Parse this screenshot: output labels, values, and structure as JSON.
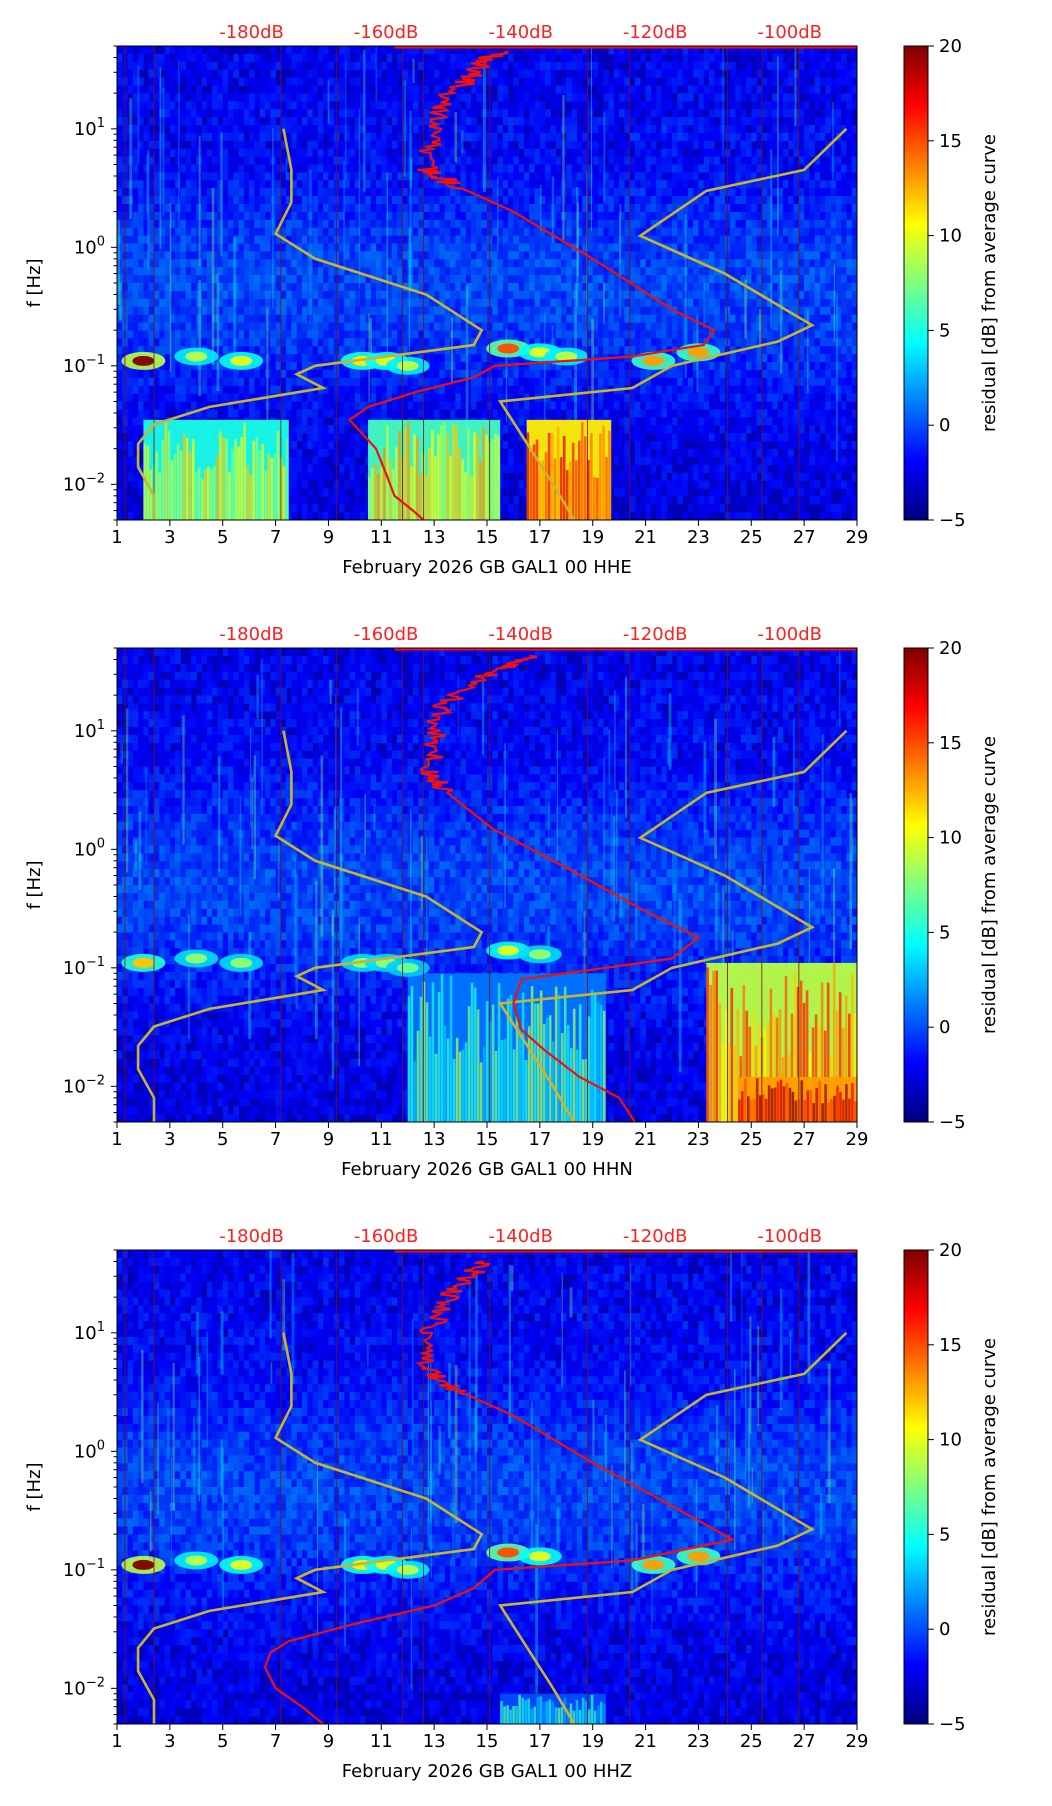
{
  "colors": {
    "db_scale_text": "#ff2020",
    "mean_curve": "#ee1111",
    "noise_model": "#c8b432",
    "grid_line": "#7a1010",
    "jet": [
      "#00007f",
      "#0000ff",
      "#007fff",
      "#00ffff",
      "#7fff7f",
      "#ffff00",
      "#ff7f00",
      "#ff0000",
      "#7f0000"
    ]
  },
  "chart_data": [
    {
      "type": "heatmap",
      "title": "",
      "xlabel": "February 2026 GB GAL1 00 HHE",
      "ylabel": "f [Hz]",
      "x_ticks": [
        "1",
        "3",
        "5",
        "7",
        "9",
        "11",
        "13",
        "15",
        "17",
        "19",
        "21",
        "23",
        "25",
        "27",
        "29"
      ],
      "xlim": [
        1,
        29
      ],
      "ylim": [
        0.005,
        50
      ],
      "yscale": "log",
      "y_ticks": [
        {
          "value": 0.01,
          "base": "10",
          "exp": "−2"
        },
        {
          "value": 0.1,
          "base": "10",
          "exp": "−1"
        },
        {
          "value": 1,
          "base": "10",
          "exp": "0"
        },
        {
          "value": 10,
          "base": "10",
          "exp": "1"
        }
      ],
      "top_db_labels": [
        "-180dB",
        "-160dB",
        "-140dB",
        "-120dB",
        "-100dB"
      ],
      "top_db_values": [
        -180,
        -160,
        -140,
        -120,
        -100
      ],
      "colorbar": {
        "label": "residual [dB] from average curve",
        "min": -5,
        "max": 20,
        "ticks": [
          "20",
          "15",
          "10",
          "5",
          "0",
          "−5"
        ]
      },
      "mean_curve": [
        {
          "x": 12.6,
          "f": 0.005
        },
        {
          "x": 12.2,
          "f": 0.006
        },
        {
          "x": 11.5,
          "f": 0.008
        },
        {
          "x": 11.2,
          "f": 0.012
        },
        {
          "x": 10.8,
          "f": 0.02
        },
        {
          "x": 10.2,
          "f": 0.028
        },
        {
          "x": 9.8,
          "f": 0.035
        },
        {
          "x": 10.5,
          "f": 0.045
        },
        {
          "x": 12.3,
          "f": 0.06
        },
        {
          "x": 14.5,
          "f": 0.08
        },
        {
          "x": 15.3,
          "f": 0.1
        },
        {
          "x": 20.5,
          "f": 0.12
        },
        {
          "x": 23.2,
          "f": 0.15
        },
        {
          "x": 23.6,
          "f": 0.2
        },
        {
          "x": 22.0,
          "f": 0.3
        },
        {
          "x": 19.0,
          "f": 0.8
        },
        {
          "x": 16.0,
          "f": 2.0
        },
        {
          "x": 13.6,
          "f": 3.5
        },
        {
          "x": 12.8,
          "f": 4.5
        },
        {
          "x": 12.9,
          "f": 8
        },
        {
          "x": 13.1,
          "f": 15
        },
        {
          "x": 14.2,
          "f": 25
        },
        {
          "x": 14.8,
          "f": 35
        },
        {
          "x": 15.4,
          "f": 45
        }
      ],
      "hot_bands": [
        {
          "x0": 2.0,
          "x1": 7.5,
          "f0": 0.005,
          "f1": 0.035,
          "level": 9
        },
        {
          "x0": 10.5,
          "x1": 15.5,
          "f0": 0.005,
          "f1": 0.035,
          "level": 10
        },
        {
          "x0": 16.5,
          "x1": 19.7,
          "f0": 0.005,
          "f1": 0.035,
          "level": 15
        }
      ],
      "microseism": [
        {
          "x": 2.0,
          "f": 0.11,
          "level": 20
        },
        {
          "x": 4.0,
          "f": 0.12,
          "level": 9
        },
        {
          "x": 5.7,
          "f": 0.11,
          "level": 10
        },
        {
          "x": 10.3,
          "f": 0.11,
          "level": 11
        },
        {
          "x": 11.2,
          "f": 0.11,
          "level": 10
        },
        {
          "x": 12.0,
          "f": 0.1,
          "level": 9
        },
        {
          "x": 15.8,
          "f": 0.14,
          "level": 15
        },
        {
          "x": 17.0,
          "f": 0.13,
          "level": 10
        },
        {
          "x": 18.0,
          "f": 0.12,
          "level": 9
        },
        {
          "x": 21.3,
          "f": 0.11,
          "level": 13
        },
        {
          "x": 23.0,
          "f": 0.13,
          "level": 13
        }
      ]
    },
    {
      "type": "heatmap",
      "title": "",
      "xlabel": "February 2026 GB GAL1 00 HHN",
      "ylabel": "f [Hz]",
      "x_ticks": [
        "1",
        "3",
        "5",
        "7",
        "9",
        "11",
        "13",
        "15",
        "17",
        "19",
        "21",
        "23",
        "25",
        "27",
        "29"
      ],
      "xlim": [
        1,
        29
      ],
      "ylim": [
        0.005,
        50
      ],
      "yscale": "log",
      "y_ticks": [
        {
          "value": 0.01,
          "base": "10",
          "exp": "−2"
        },
        {
          "value": 0.1,
          "base": "10",
          "exp": "−1"
        },
        {
          "value": 1,
          "base": "10",
          "exp": "0"
        },
        {
          "value": 10,
          "base": "10",
          "exp": "1"
        }
      ],
      "top_db_labels": [
        "-180dB",
        "-160dB",
        "-140dB",
        "-120dB",
        "-100dB"
      ],
      "top_db_values": [
        -180,
        -160,
        -140,
        -120,
        -100
      ],
      "colorbar": {
        "label": "residual [dB] from average curve",
        "min": -5,
        "max": 20,
        "ticks": [
          "20",
          "15",
          "10",
          "5",
          "0",
          "−5"
        ]
      },
      "mean_curve": [
        {
          "x": 20.6,
          "f": 0.005
        },
        {
          "x": 20.0,
          "f": 0.008
        },
        {
          "x": 18.5,
          "f": 0.012
        },
        {
          "x": 17.2,
          "f": 0.02
        },
        {
          "x": 16.3,
          "f": 0.03
        },
        {
          "x": 16.0,
          "f": 0.05
        },
        {
          "x": 16.3,
          "f": 0.08
        },
        {
          "x": 19.5,
          "f": 0.1
        },
        {
          "x": 22.0,
          "f": 0.12
        },
        {
          "x": 23.0,
          "f": 0.18
        },
        {
          "x": 21.0,
          "f": 0.3
        },
        {
          "x": 18.0,
          "f": 0.7
        },
        {
          "x": 15.2,
          "f": 1.5
        },
        {
          "x": 13.5,
          "f": 3
        },
        {
          "x": 12.8,
          "f": 4.5
        },
        {
          "x": 13.0,
          "f": 8
        },
        {
          "x": 13.2,
          "f": 15
        },
        {
          "x": 14.3,
          "f": 25
        },
        {
          "x": 15.8,
          "f": 35
        },
        {
          "x": 17.0,
          "f": 43
        }
      ],
      "hot_bands": [
        {
          "x0": 12.0,
          "x1": 19.5,
          "f0": 0.005,
          "f1": 0.09,
          "level": 5
        },
        {
          "x0": 23.3,
          "x1": 29.0,
          "f0": 0.005,
          "f1": 0.11,
          "level": 13
        },
        {
          "x0": 24.5,
          "x1": 29.0,
          "f0": 0.005,
          "f1": 0.012,
          "level": 17
        }
      ],
      "microseism": [
        {
          "x": 2.0,
          "f": 0.11,
          "level": 12
        },
        {
          "x": 4.0,
          "f": 0.12,
          "level": 8
        },
        {
          "x": 5.7,
          "f": 0.11,
          "level": 8
        },
        {
          "x": 10.3,
          "f": 0.11,
          "level": 8
        },
        {
          "x": 11.2,
          "f": 0.11,
          "level": 8
        },
        {
          "x": 12.0,
          "f": 0.1,
          "level": 7
        },
        {
          "x": 15.8,
          "f": 0.14,
          "level": 10
        },
        {
          "x": 17.0,
          "f": 0.13,
          "level": 8
        }
      ]
    },
    {
      "type": "heatmap",
      "title": "",
      "xlabel": "February 2026 GB GAL1 00 HHZ",
      "ylabel": "f [Hz]",
      "x_ticks": [
        "1",
        "3",
        "5",
        "7",
        "9",
        "11",
        "13",
        "15",
        "17",
        "19",
        "21",
        "23",
        "25",
        "27",
        "29"
      ],
      "xlim": [
        1,
        29
      ],
      "ylim": [
        0.005,
        50
      ],
      "yscale": "log",
      "y_ticks": [
        {
          "value": 0.01,
          "base": "10",
          "exp": "−2"
        },
        {
          "value": 0.1,
          "base": "10",
          "exp": "−1"
        },
        {
          "value": 1,
          "base": "10",
          "exp": "0"
        },
        {
          "value": 10,
          "base": "10",
          "exp": "1"
        }
      ],
      "top_db_labels": [
        "-180dB",
        "-160dB",
        "-140dB",
        "-120dB",
        "-100dB"
      ],
      "top_db_values": [
        -180,
        -160,
        -140,
        -120,
        -100
      ],
      "colorbar": {
        "label": "residual [dB] from average curve",
        "min": -5,
        "max": 20,
        "ticks": [
          "20",
          "15",
          "10",
          "5",
          "0",
          "−5"
        ]
      },
      "mean_curve": [
        {
          "x": 8.8,
          "f": 0.005
        },
        {
          "x": 8.0,
          "f": 0.007
        },
        {
          "x": 7.0,
          "f": 0.01
        },
        {
          "x": 6.6,
          "f": 0.015
        },
        {
          "x": 6.8,
          "f": 0.02
        },
        {
          "x": 7.5,
          "f": 0.025
        },
        {
          "x": 10.0,
          "f": 0.035
        },
        {
          "x": 13.0,
          "f": 0.05
        },
        {
          "x": 14.5,
          "f": 0.07
        },
        {
          "x": 15.3,
          "f": 0.1
        },
        {
          "x": 20.5,
          "f": 0.12
        },
        {
          "x": 24.3,
          "f": 0.18
        },
        {
          "x": 22.5,
          "f": 0.3
        },
        {
          "x": 19.0,
          "f": 0.8
        },
        {
          "x": 16.0,
          "f": 2.0
        },
        {
          "x": 13.6,
          "f": 3.5
        },
        {
          "x": 12.8,
          "f": 5
        },
        {
          "x": 12.9,
          "f": 10
        },
        {
          "x": 13.3,
          "f": 18
        },
        {
          "x": 14.3,
          "f": 28
        },
        {
          "x": 14.8,
          "f": 40
        }
      ],
      "hot_bands": [
        {
          "x0": 15.5,
          "x1": 19.5,
          "f0": 0.005,
          "f1": 0.009,
          "level": 4
        }
      ],
      "microseism": [
        {
          "x": 2.0,
          "f": 0.11,
          "level": 20
        },
        {
          "x": 4.0,
          "f": 0.12,
          "level": 9
        },
        {
          "x": 5.7,
          "f": 0.11,
          "level": 10
        },
        {
          "x": 10.3,
          "f": 0.11,
          "level": 11
        },
        {
          "x": 11.2,
          "f": 0.11,
          "level": 10
        },
        {
          "x": 12.0,
          "f": 0.1,
          "level": 9
        },
        {
          "x": 15.8,
          "f": 0.14,
          "level": 15
        },
        {
          "x": 17.0,
          "f": 0.13,
          "level": 10
        },
        {
          "x": 21.3,
          "f": 0.11,
          "level": 13
        },
        {
          "x": 23.0,
          "f": 0.13,
          "level": 13
        }
      ]
    }
  ],
  "noise_model_curves": {
    "low": [
      {
        "x": 2.4,
        "f": 0.005
      },
      {
        "x": 2.4,
        "f": 0.008
      },
      {
        "x": 1.8,
        "f": 0.014
      },
      {
        "x": 1.8,
        "f": 0.022
      },
      {
        "x": 2.4,
        "f": 0.032
      },
      {
        "x": 4.5,
        "f": 0.045
      },
      {
        "x": 8.8,
        "f": 0.065
      },
      {
        "x": 7.8,
        "f": 0.085
      },
      {
        "x": 8.5,
        "f": 0.1
      },
      {
        "x": 14.5,
        "f": 0.15
      },
      {
        "x": 14.8,
        "f": 0.2
      },
      {
        "x": 12.7,
        "f": 0.4
      },
      {
        "x": 8.5,
        "f": 0.8
      },
      {
        "x": 7.0,
        "f": 1.3
      },
      {
        "x": 7.6,
        "f": 2.4
      },
      {
        "x": 7.6,
        "f": 4.5
      },
      {
        "x": 7.3,
        "f": 10
      }
    ],
    "high": [
      {
        "x": 18.3,
        "f": 0.005
      },
      {
        "x": 17.5,
        "f": 0.01
      },
      {
        "x": 15.5,
        "f": 0.05
      },
      {
        "x": 20.5,
        "f": 0.065
      },
      {
        "x": 22.0,
        "f": 0.1
      },
      {
        "x": 26.0,
        "f": 0.16
      },
      {
        "x": 27.3,
        "f": 0.22
      },
      {
        "x": 24.0,
        "f": 0.6
      },
      {
        "x": 20.8,
        "f": 1.25
      },
      {
        "x": 23.3,
        "f": 3.0
      },
      {
        "x": 27.0,
        "f": 4.5
      },
      {
        "x": 28.6,
        "f": 10
      }
    ]
  }
}
